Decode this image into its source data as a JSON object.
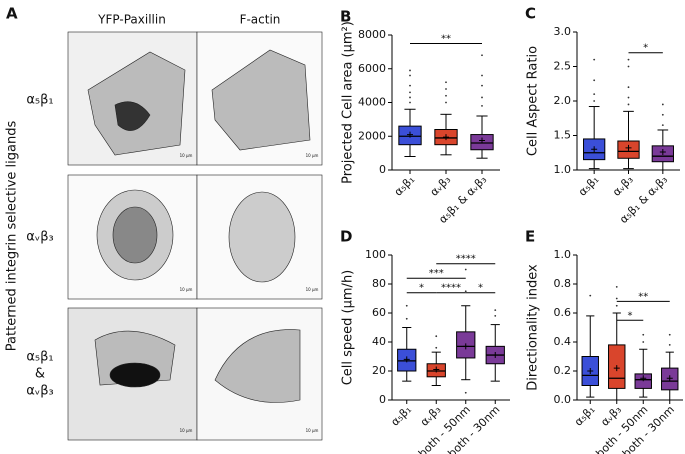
{
  "panel_a": {
    "letter": "A",
    "side_label": "Patterned integrin selective ligands",
    "columns": [
      "YFP-Paxillin",
      "F-actin"
    ],
    "rows": [
      "α₅β₁",
      "αᵥβ₃",
      "α₅β₁",
      "&",
      "αᵥβ₃"
    ],
    "scale_bar": "10 µm"
  },
  "chart_data": [
    {
      "type": "box",
      "panel": "B",
      "ylabel": "Projected Cell area (µm²)",
      "categories": [
        "α₅β₁",
        "αᵥβ₃",
        "α₅β₁ & αᵥβ₃"
      ],
      "ylim": [
        0,
        8000
      ],
      "yticks": [
        0,
        2000,
        4000,
        6000,
        8000
      ],
      "boxes": [
        {
          "color": "#3b4fd8",
          "whislo": 800,
          "q1": 1500,
          "med": 2000,
          "q3": 2600,
          "whishi": 3600,
          "mean": 2100,
          "fliers": [
            4000,
            4300,
            4600,
            5000,
            5600,
            5900
          ]
        },
        {
          "color": "#d9452c",
          "whislo": 900,
          "q1": 1500,
          "med": 1900,
          "q3": 2400,
          "whishi": 3300,
          "mean": 1950,
          "fliers": [
            4000,
            4400,
            4800,
            5200
          ]
        },
        {
          "color": "#7a3a98",
          "whislo": 700,
          "q1": 1200,
          "med": 1600,
          "q3": 2100,
          "whishi": 3200,
          "mean": 1750,
          "fliers": [
            3800,
            4300,
            5000,
            5600,
            6800
          ]
        }
      ],
      "annotations": [
        {
          "text": "**",
          "from": 0,
          "to": 2,
          "y": 7500
        }
      ]
    },
    {
      "type": "box",
      "panel": "C",
      "ylabel": "Cell Aspect Ratio",
      "categories": [
        "α₅β₁",
        "αᵥβ₃",
        "α₅β₁ & αᵥβ₃"
      ],
      "ylim": [
        1,
        3
      ],
      "yticks": [
        {
          "value": 1,
          "label": "1.0"
        },
        1.5,
        {
          "value": 2,
          "label": "2.0"
        },
        2.5,
        {
          "value": 3,
          "label": "3.0"
        }
      ],
      "boxes": [
        {
          "color": "#3b4fd8",
          "whislo": 1.02,
          "q1": 1.15,
          "med": 1.25,
          "q3": 1.45,
          "whishi": 1.92,
          "mean": 1.3,
          "fliers": [
            2.0,
            2.1,
            2.3,
            2.6
          ]
        },
        {
          "color": "#d9452c",
          "whislo": 1.02,
          "q1": 1.17,
          "med": 1.27,
          "q3": 1.42,
          "whishi": 1.85,
          "mean": 1.32,
          "fliers": [
            1.95,
            2.05,
            2.2,
            2.5,
            2.6
          ]
        },
        {
          "color": "#7a3a98",
          "whislo": 1.0,
          "q1": 1.12,
          "med": 1.2,
          "q3": 1.35,
          "whishi": 1.58,
          "mean": 1.26,
          "fliers": [
            1.65,
            1.8,
            1.95
          ]
        }
      ],
      "annotations": [
        {
          "text": "*",
          "from": 1,
          "to": 2,
          "y": 2.7
        }
      ]
    },
    {
      "type": "box",
      "panel": "D",
      "ylabel": "Cell speed (µm/h)",
      "categories": [
        "α₅β₁",
        "αᵥβ₃",
        "both - 50nm",
        "both - 30nm"
      ],
      "ylim": [
        0,
        100
      ],
      "yticks": [
        0,
        20,
        40,
        60,
        80,
        100
      ],
      "boxes": [
        {
          "color": "#3b4fd8",
          "whislo": 13,
          "q1": 20,
          "med": 27,
          "q3": 35,
          "whishi": 50,
          "mean": 28,
          "fliers": [
            56,
            65
          ]
        },
        {
          "color": "#d9452c",
          "whislo": 10,
          "q1": 16,
          "med": 20,
          "q3": 25,
          "whishi": 33,
          "mean": 21,
          "fliers": [
            36,
            44
          ]
        },
        {
          "color": "#7a3a98",
          "whislo": 14,
          "q1": 29,
          "med": 37,
          "q3": 47,
          "whishi": 65,
          "mean": 37,
          "fliers": [
            5,
            75,
            90
          ]
        },
        {
          "color": "#7a3a98",
          "whislo": 13,
          "q1": 25,
          "med": 31,
          "q3": 37,
          "whishi": 52,
          "mean": 31,
          "fliers": [
            58,
            62
          ]
        }
      ],
      "annotations": [
        {
          "text": "*",
          "from": 0,
          "to": 1,
          "y": 74
        },
        {
          "text": "****",
          "from": 1,
          "to": 2,
          "y": 74
        },
        {
          "text": "*",
          "from": 2,
          "to": 3,
          "y": 74
        },
        {
          "text": "***",
          "from": 0,
          "to": 2,
          "y": 84
        },
        {
          "text": "****",
          "from": 1,
          "to": 3,
          "y": 94
        }
      ]
    },
    {
      "type": "box",
      "panel": "E",
      "ylabel": "Directionality index",
      "categories": [
        "α₅β₁",
        "αᵥβ₃",
        "both - 50nm",
        "both - 30nm"
      ],
      "ylim": [
        0,
        1
      ],
      "yticks": [
        {
          "value": 0,
          "label": "0.0"
        },
        0.2,
        0.4,
        0.6,
        0.8,
        {
          "value": 1,
          "label": "1.0"
        }
      ],
      "boxes": [
        {
          "color": "#3b4fd8",
          "whislo": 0.02,
          "q1": 0.1,
          "med": 0.17,
          "q3": 0.3,
          "whishi": 0.58,
          "mean": 0.2,
          "fliers": [
            0.72
          ]
        },
        {
          "color": "#d9452c",
          "whislo": 0.0,
          "q1": 0.08,
          "med": 0.15,
          "q3": 0.38,
          "whishi": 0.6,
          "mean": 0.22,
          "fliers": [
            0.65,
            0.7,
            0.78
          ]
        },
        {
          "color": "#7a3a98",
          "whislo": 0.02,
          "q1": 0.08,
          "med": 0.14,
          "q3": 0.18,
          "whishi": 0.35,
          "mean": 0.15,
          "fliers": [
            0.4,
            0.45
          ]
        },
        {
          "color": "#7a3a98",
          "whislo": 0.0,
          "q1": 0.07,
          "med": 0.13,
          "q3": 0.22,
          "whishi": 0.33,
          "mean": 0.15,
          "fliers": [
            0.38,
            0.45
          ]
        }
      ],
      "annotations": [
        {
          "text": "*",
          "from": 1,
          "to": 2,
          "y": 0.55
        },
        {
          "text": "**",
          "from": 1,
          "to": 3,
          "y": 0.68
        }
      ]
    }
  ]
}
